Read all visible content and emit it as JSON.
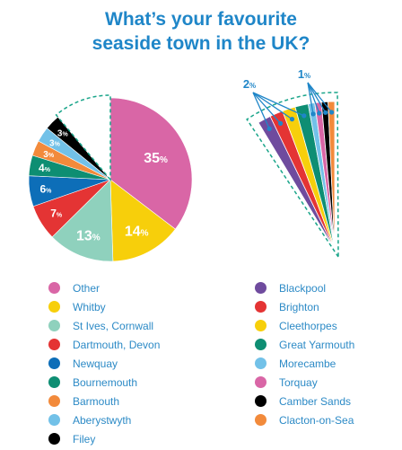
{
  "title_line1": "What’s your favourite",
  "title_line2": "seaside town in the UK?",
  "chart_data": {
    "type": "pie",
    "title": "What’s your favourite seaside town in the UK?",
    "slices": [
      {
        "label": "Other",
        "value": 35,
        "value_label": "35",
        "color": "#d966a6"
      },
      {
        "label": "Whitby",
        "value": 14,
        "value_label": "14",
        "color": "#f7cf0b"
      },
      {
        "label": "St Ives, Cornwall",
        "value": 13,
        "value_label": "13",
        "color": "#8fd1bd"
      },
      {
        "label": "Dartmouth, Devon",
        "value": 7,
        "value_label": "7",
        "color": "#e43434"
      },
      {
        "label": "Newquay",
        "value": 6,
        "value_label": "6",
        "color": "#0d6eb8"
      },
      {
        "label": "Bournemouth",
        "value": 4,
        "value_label": "4",
        "color": "#0e8e73"
      },
      {
        "label": "Barmouth",
        "value": 3,
        "value_label": "3",
        "color": "#f28a3b"
      },
      {
        "label": "Aberystwyth",
        "value": 3,
        "value_label": "3",
        "color": "#72c1e8"
      },
      {
        "label": "Filey",
        "value": 3,
        "value_label": "3",
        "color": "#000000"
      }
    ],
    "breakout": {
      "slices": [
        {
          "label": "Blackpool",
          "value": 2,
          "color": "#6f4b9e"
        },
        {
          "label": "Brighton",
          "value": 2,
          "color": "#e43434"
        },
        {
          "label": "Cleethorpes",
          "value": 2,
          "color": "#f7cf0b"
        },
        {
          "label": "Great Yarmouth",
          "value": 2,
          "color": "#0e8e73"
        },
        {
          "label": "Morecambe",
          "value": 1,
          "color": "#72c1e8"
        },
        {
          "label": "Torquay",
          "value": 1,
          "color": "#d966a6"
        },
        {
          "label": "Camber Sands",
          "value": 1,
          "color": "#000000"
        },
        {
          "label": "Clacton-on-Sea",
          "value": 1,
          "color": "#f28a3b"
        }
      ],
      "callouts": [
        {
          "value_label": "2"
        },
        {
          "value_label": "1"
        }
      ]
    },
    "percent_symbol": "%"
  }
}
